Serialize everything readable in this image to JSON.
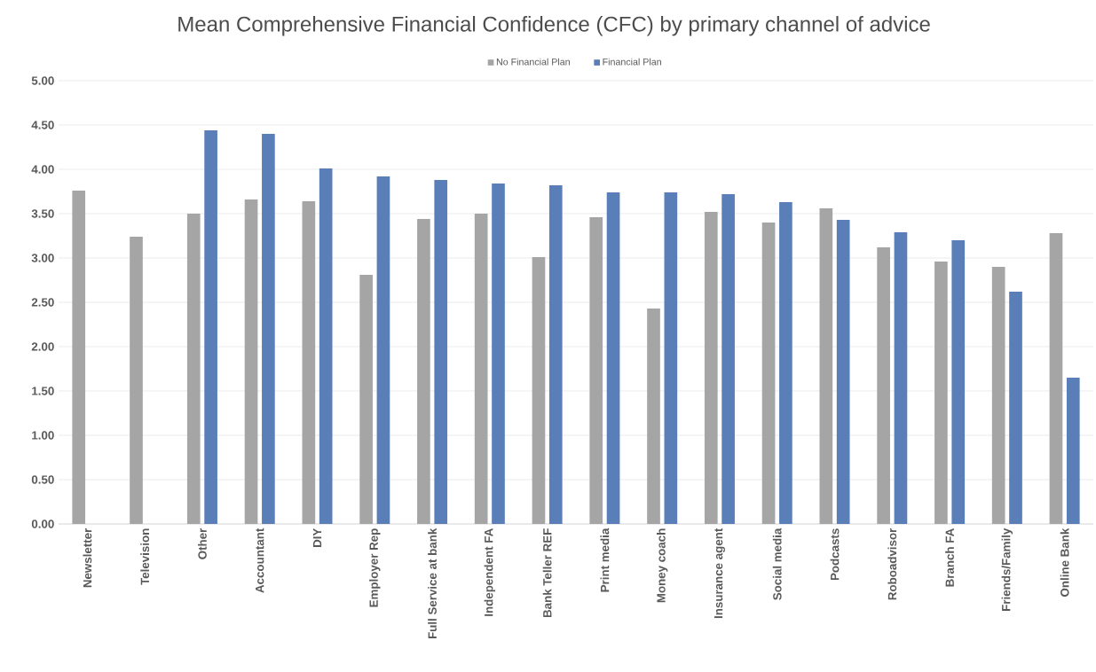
{
  "chart_data": {
    "type": "bar",
    "title": "Mean Comprehensive Financial Confidence (CFC) by primary channel of advice",
    "categories": [
      "Newsletter",
      "Television",
      "Other",
      "Accountant",
      "DIY",
      "Employer Rep",
      "Full Service at bank",
      "Independent FA",
      "Bank Teller REF",
      "Print media",
      "Money coach",
      "Insurance agent",
      "Social media",
      "Podcasts",
      "Roboadvisor",
      "Branch FA",
      "Friends/Family",
      "Online Bank"
    ],
    "series": [
      {
        "name": "No Financial Plan",
        "color": "#a5a5a5",
        "values": [
          3.76,
          3.24,
          3.5,
          3.66,
          3.64,
          2.81,
          3.44,
          3.5,
          3.01,
          3.46,
          2.43,
          3.52,
          3.4,
          3.56,
          3.12,
          2.96,
          2.9,
          3.28
        ]
      },
      {
        "name": "Financial Plan",
        "color": "#5a7fb8",
        "values": [
          null,
          null,
          4.44,
          4.4,
          4.01,
          3.92,
          3.88,
          3.84,
          3.82,
          3.74,
          3.74,
          3.72,
          3.63,
          3.43,
          3.29,
          3.2,
          2.62,
          1.65
        ]
      }
    ],
    "ylim": [
      0,
      5
    ],
    "yticks": [
      {
        "value": 0,
        "label": "0.00"
      },
      {
        "value": 0.5,
        "label": "0.50"
      },
      {
        "value": 1,
        "label": "1.00"
      },
      {
        "value": 1.5,
        "label": "1.50"
      },
      {
        "value": 2,
        "label": "2.00"
      },
      {
        "value": 2.5,
        "label": "2.50"
      },
      {
        "value": 3,
        "label": "3.00"
      },
      {
        "value": 3.5,
        "label": "3.50"
      },
      {
        "value": 4,
        "label": "4.00"
      },
      {
        "value": 4.5,
        "label": "4.50"
      },
      {
        "value": 5,
        "label": "5.00"
      }
    ],
    "grid": "y",
    "legend": "top"
  }
}
